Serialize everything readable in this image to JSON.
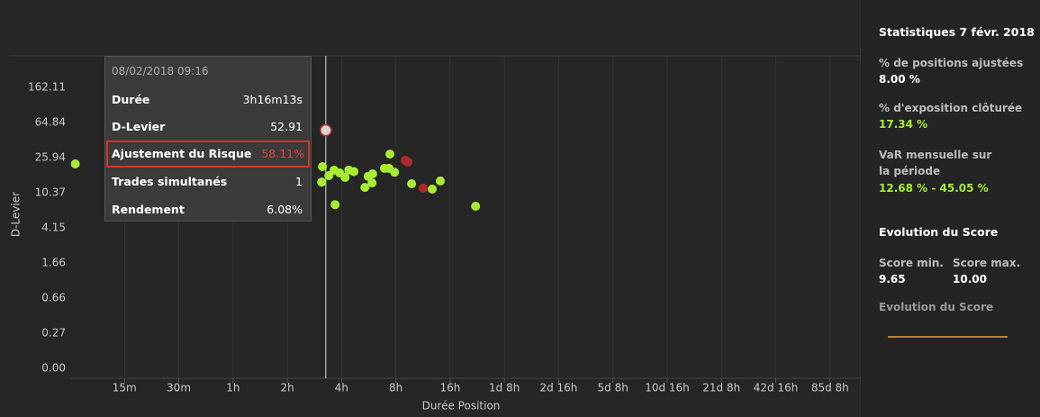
{
  "chart_data": {
    "type": "scatter",
    "x_label": "Durée Position",
    "y_label": "D-Levier",
    "x": [
      8,
      196.2,
      188,
      186,
      204,
      218,
      234,
      251,
      263,
      221,
      281,
      323,
      337,
      354,
      357,
      415,
      445,
      440,
      472,
      587,
      764,
      847,
      1329,
      541,
      560,
      681
    ],
    "values": [
      22.0,
      52.91,
      20.5,
      13.7,
      16.2,
      18.7,
      17.4,
      15.5,
      18.7,
      7.6,
      18.0,
      11.9,
      15.9,
      13.4,
      17.0,
      19.6,
      28.4,
      19.6,
      17.7,
      13.1,
      11.4,
      14.1,
      7.3,
      24.2,
      23.1,
      11.7
    ],
    "colors": [
      "#a6ec34",
      "#d6d6d6",
      "#a6ec34",
      "#a6ec34",
      "#a6ec34",
      "#a6ec34",
      "#a6ec34",
      "#a6ec34",
      "#a6ec34",
      "#a6ec34",
      "#a6ec34",
      "#a6ec34",
      "#a6ec34",
      "#a6ec34",
      "#a6ec34",
      "#a6ec34",
      "#a6ec34",
      "#a6ec34",
      "#a6ec34",
      "#a6ec34",
      "#a6ec34",
      "#a6ec34",
      "#a6ec34",
      "#b0282a",
      "#b0282a",
      "#b0282a"
    ],
    "selected": 1,
    "xscale": "log",
    "xlim": [
      7.5,
      180000
    ],
    "xticks": [
      {
        "value": 15,
        "label": "15m"
      },
      {
        "value": 30,
        "label": "30m"
      },
      {
        "value": 60,
        "label": "1h"
      },
      {
        "value": 120,
        "label": "2h"
      },
      {
        "value": 240,
        "label": "4h"
      },
      {
        "value": 480,
        "label": "8h"
      },
      {
        "value": 960,
        "label": "16h"
      },
      {
        "value": 1920,
        "label": "1d 8h"
      },
      {
        "value": 3840,
        "label": "2d 16h"
      },
      {
        "value": 7680,
        "label": "5d 8h"
      },
      {
        "value": 15360,
        "label": "10d 16h"
      },
      {
        "value": 30720,
        "label": "21d 8h"
      },
      {
        "value": 61440,
        "label": "42d 16h"
      },
      {
        "value": 122880,
        "label": "85d 8h"
      }
    ],
    "ylim": [
      0,
      405.3
    ],
    "yticks": [
      {
        "value": 0,
        "label": "0.00"
      },
      0.27,
      0.66,
      1.66,
      4.15,
      10.37,
      25.94,
      64.84,
      162.11
    ],
    "grid": true
  },
  "tooltip": {
    "date": "08/02/2018 09:16",
    "rows": [
      {
        "label": "Durée",
        "value": "3h16m13s"
      },
      {
        "label": "D-Levier",
        "value": 52.91
      },
      {
        "label": "Ajustement du Risque",
        "value": "58.11%"
      },
      {
        "label": "Trades simultanés",
        "value": 1
      },
      {
        "label": "Rendement",
        "value": "6.08%"
      }
    ]
  },
  "panel": {
    "title": "Statistiques 7 févr. 2018",
    "stats": [
      {
        "label": "% de positions ajustées",
        "value": "8.00 %"
      },
      {
        "label": "% d'exposition clôturée",
        "value": "17.34 %"
      },
      {
        "label": "VaR mensuelle sur la période",
        "value": "12.68 % - 45.05 %"
      }
    ],
    "score_title": "Evolution du Score",
    "score_min": {
      "label": "Score min.",
      "value": "9.65"
    },
    "score_max": {
      "label": "Score max.",
      "value": "10.00"
    },
    "sparkline_title": "Evolution du Score"
  }
}
